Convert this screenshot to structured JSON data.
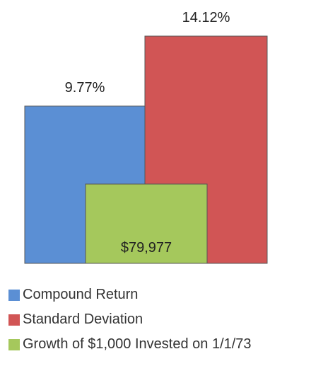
{
  "chart_data": {
    "type": "bar",
    "categories": [
      "Compound Return",
      "Standard Deviation",
      "Growth of $1,000 Invested on 1/1/73"
    ],
    "values": [
      9.77,
      14.12,
      79977
    ],
    "data_labels": [
      "9.77%",
      "14.12%",
      "$79,977"
    ],
    "colors": [
      "#5b8fd4",
      "#d15555",
      "#a5c85c"
    ],
    "grid": false,
    "legend_placement": "bottom-left"
  }
}
